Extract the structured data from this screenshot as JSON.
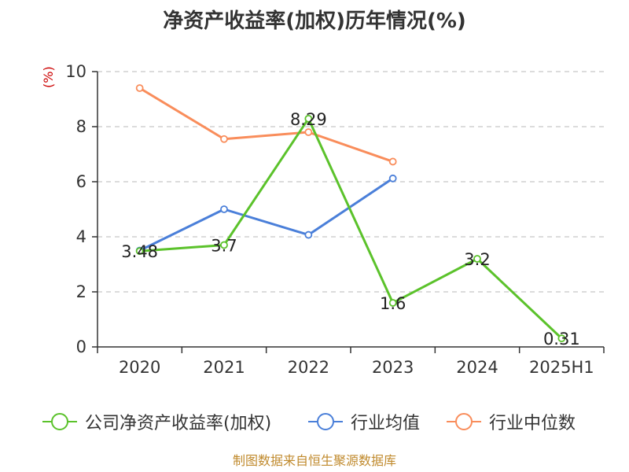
{
  "page": {
    "title": "净资产收益率(加权)历年情况(%)",
    "unit_label": "(%)",
    "footer": "制图数据来自恒生聚源数据库"
  },
  "colors": {
    "company": "#5bc22b",
    "industry_avg": "#4a7fd9",
    "industry_median": "#f98d5b",
    "grid": "#c8c8c8",
    "axis": "#333333",
    "text": "#333333",
    "unit": "#cc0000",
    "footer": "#c08a2d"
  },
  "chart_data": {
    "type": "line",
    "title": "净资产收益率(加权)历年情况(%)",
    "xlabel": "",
    "ylabel": "(%)",
    "categories": [
      "2020",
      "2021",
      "2022",
      "2023",
      "2024",
      "2025H1"
    ],
    "ylim": [
      0,
      10
    ],
    "yticks": [
      0,
      2,
      4,
      6,
      8,
      10
    ],
    "grid": true,
    "legend_position": "bottom",
    "series": [
      {
        "name": "公司净资产收益率(加权)",
        "color": "#5bc22b",
        "values": [
          3.48,
          3.7,
          8.29,
          1.6,
          3.2,
          0.31
        ],
        "labels": [
          "3.48",
          "3.7",
          "8.29",
          "1.6",
          "3.2",
          "0.31"
        ],
        "show_labels": true
      },
      {
        "name": "行业均值",
        "color": "#4a7fd9",
        "values": [
          3.5,
          5.0,
          4.07,
          6.12,
          null,
          null
        ],
        "show_labels": false
      },
      {
        "name": "行业中位数",
        "color": "#f98d5b",
        "values": [
          9.4,
          7.55,
          7.8,
          6.73,
          null,
          null
        ],
        "show_labels": false
      }
    ]
  }
}
